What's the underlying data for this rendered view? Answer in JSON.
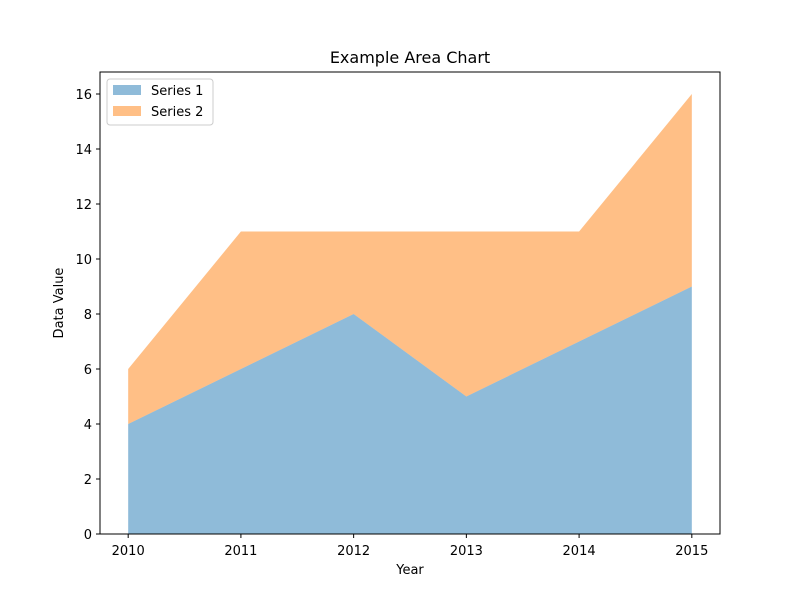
{
  "chart_data": {
    "type": "area",
    "stacked": true,
    "title": "Example Area Chart",
    "xlabel": "Year",
    "ylabel": "Data Value",
    "x": [
      2010,
      2011,
      2012,
      2013,
      2014,
      2015
    ],
    "xticks": [
      "2010",
      "2011",
      "2012",
      "2013",
      "2014",
      "2015"
    ],
    "ylim": [
      0,
      16.8
    ],
    "yticks": [
      0,
      2,
      4,
      6,
      8,
      10,
      12,
      14,
      16
    ],
    "grid": false,
    "legend_position": "upper left",
    "series": [
      {
        "name": "Series 1",
        "values": [
          4,
          6,
          8,
          5,
          7,
          9
        ],
        "color": "#1f77b4",
        "alpha": 0.5
      },
      {
        "name": "Series 2",
        "values": [
          2,
          5,
          3,
          6,
          4,
          7
        ],
        "color": "#ff7f0e",
        "alpha": 0.5
      }
    ]
  }
}
